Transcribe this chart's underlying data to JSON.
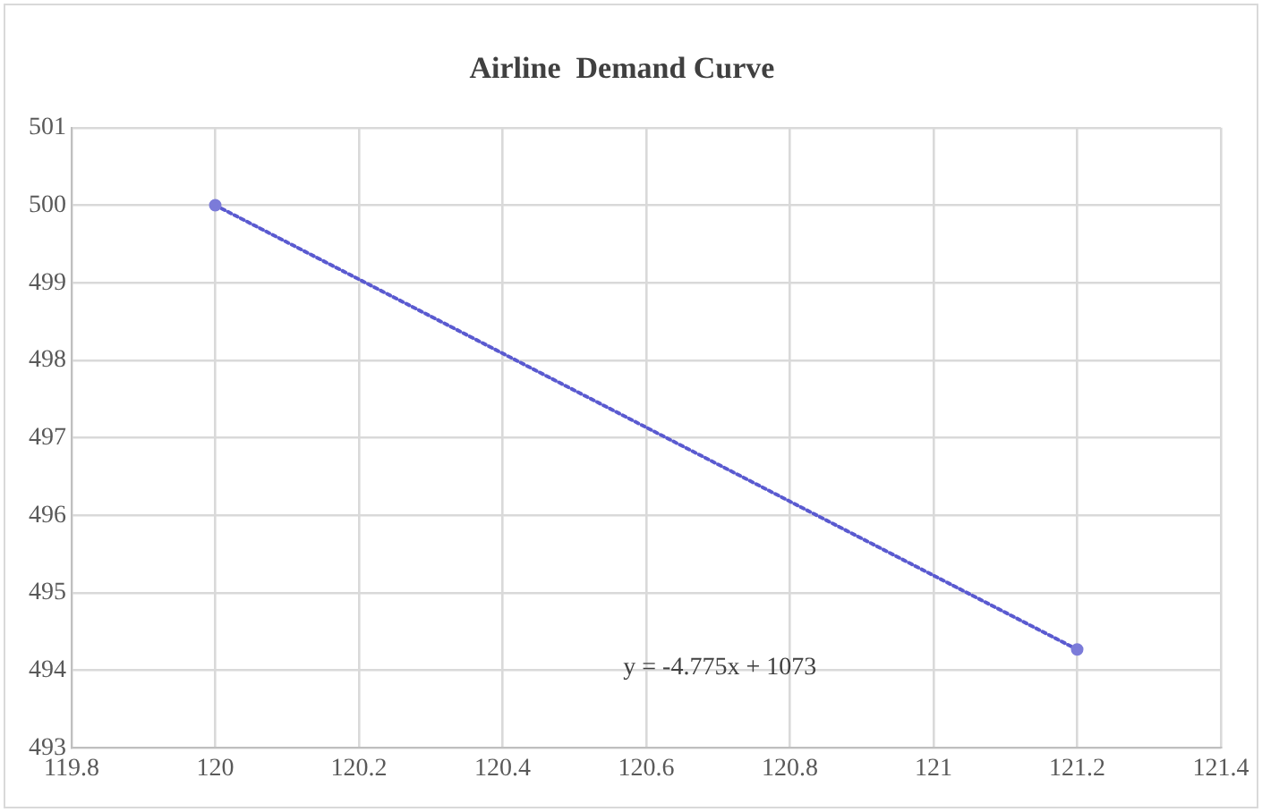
{
  "chart_data": {
    "type": "scatter",
    "title": "Airline  Demand Curve",
    "series": [
      {
        "type": "scatter",
        "color": "#7b7bd9",
        "values": [
          500,
          494.27
        ],
        "marker": "circle"
      },
      {
        "type": "line",
        "color": "#5a5ad0",
        "values": [
          500,
          494.27
        ],
        "line_style": "dotted",
        "marker": "none"
      }
    ],
    "x": [
      120,
      121.2
    ],
    "xlim": [
      119.8,
      121.4
    ],
    "xticks": [
      119.8,
      120,
      120.2,
      120.4,
      120.6,
      120.8,
      121,
      121.2,
      121.4
    ],
    "ylim": [
      493,
      501
    ],
    "yticks": [
      493,
      494,
      495,
      496,
      497,
      498,
      499,
      500,
      501
    ],
    "grid": true,
    "legend": false,
    "annotations": [
      "y = -4.775x + 1073"
    ]
  }
}
